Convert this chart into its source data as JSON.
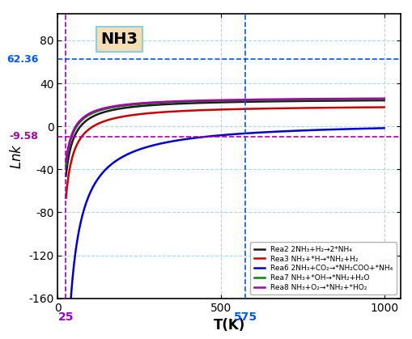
{
  "title": "NH3",
  "xlabel": "T(K)",
  "xlim": [
    0,
    1050
  ],
  "ylim": [
    -160,
    105
  ],
  "yticks": [
    -160,
    -120,
    -80,
    -40,
    0,
    40,
    80
  ],
  "xticks": [
    0,
    500,
    1000
  ],
  "vline_x1": 25,
  "vline_x2": 575,
  "hline_y1": 62.36,
  "hline_y2": -9.58,
  "hline_y1_label": "62.36",
  "hline_y2_label": "-9.58",
  "vline_x1_label": "25",
  "vline_x2_label": "575",
  "reactions": [
    {
      "label": "Rea2 2NH₃+H₂→2*NH₄",
      "color": "#1a1a1a",
      "lnA": 26.0,
      "Ea": 15000
    },
    {
      "label": "Rea3 NH₃+*H→*NH₂+H₂",
      "color": "#cc0000",
      "lnA": 20.0,
      "Ea": 18000
    },
    {
      "label": "Rea6 2NH₃+CO₂→*NH₂COO+*NH₄",
      "color": "#0000cc",
      "lnA": 5.0,
      "Ea": 55000
    },
    {
      "label": "Rea7 NH₃+*OH→*NH₂+H₂O",
      "color": "#008800",
      "lnA": 27.0,
      "Ea": 13000
    },
    {
      "label": "Rea8 NH₃+O₂→*NH₂+*HO₂",
      "color": "#aa00aa",
      "lnA": 27.5,
      "Ea": 12500
    }
  ],
  "bg_color": "#ffffff",
  "grid_color": "#add8e6",
  "vline_color_purple": "#9900cc",
  "vline_color_blue": "#0055ff",
  "hline_color_blue": "#0055ff",
  "hline_color_purple": "#aa00aa",
  "annotation_box_facecolor": "#f5deb3",
  "annotation_box_edgecolor": "#87ceeb"
}
